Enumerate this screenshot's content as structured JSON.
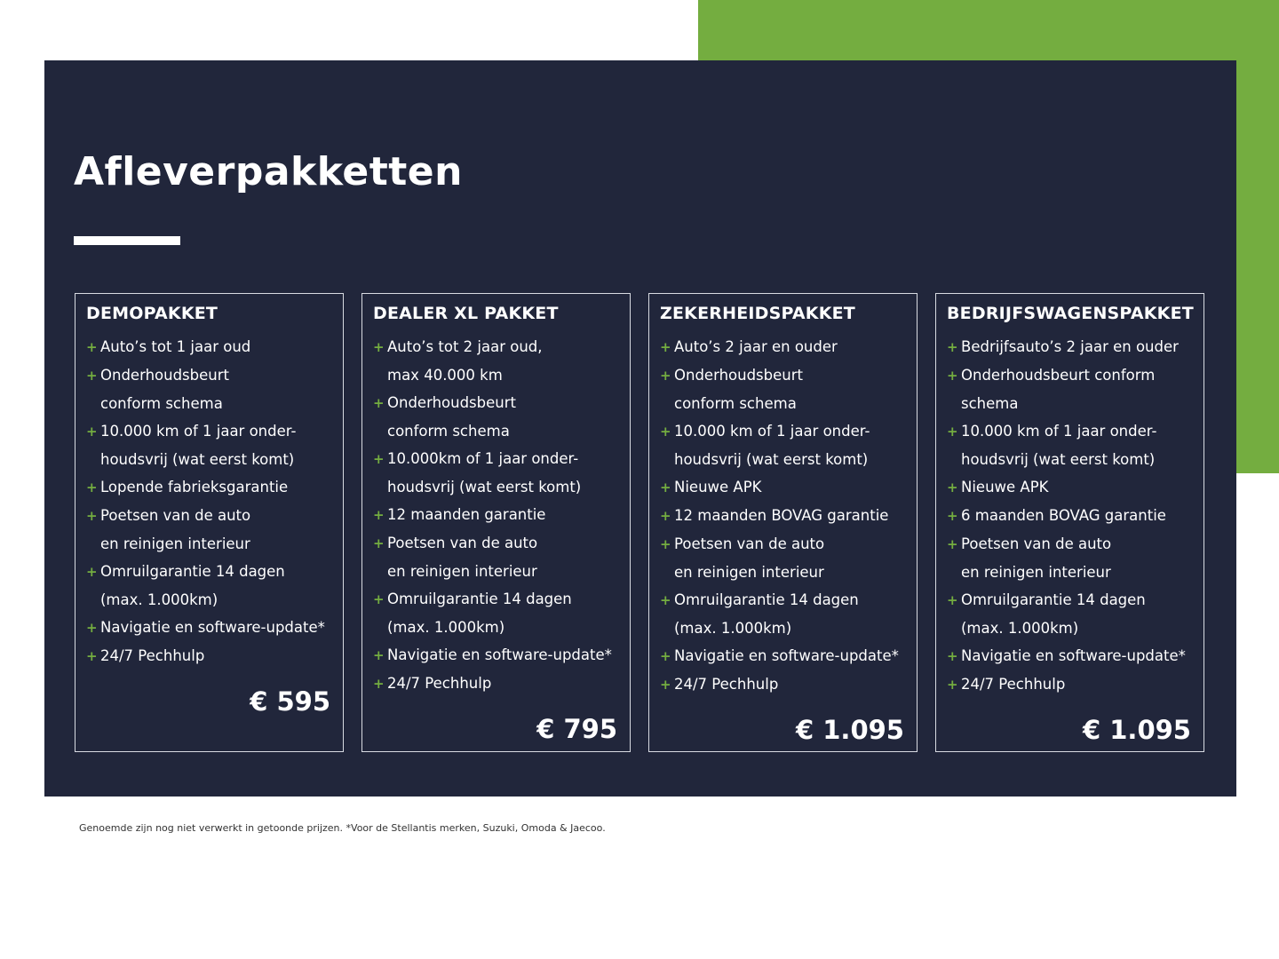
{
  "colors": {
    "accent": "#74ad40",
    "panel": "#21263b"
  },
  "title": "Afleverpakketten",
  "packages": [
    {
      "name": "DEMOPAKKET",
      "items": [
        [
          "Auto’s tot 1 jaar oud"
        ],
        [
          "Onderhoudsbeurt",
          "conform schema"
        ],
        [
          "10.000 km of 1 jaar onder-",
          "houdsvrij (wat eerst komt)"
        ],
        [
          "Lopende fabrieksgarantie"
        ],
        [
          "Poetsen van de auto",
          "en reinigen interieur"
        ],
        [
          "Omruilgarantie 14 dagen",
          "(max. 1.000km)"
        ],
        [
          "Navigatie en software-update*"
        ],
        [
          "24/7 Pechhulp"
        ]
      ],
      "price": "€ 595"
    },
    {
      "name": "DEALER XL PAKKET",
      "items": [
        [
          "Auto’s tot 2 jaar oud,",
          "max 40.000 km"
        ],
        [
          "Onderhoudsbeurt",
          "conform schema"
        ],
        [
          "10.000km of 1 jaar onder-",
          "houdsvrij (wat eerst komt)"
        ],
        [
          "12 maanden garantie"
        ],
        [
          "Poetsen van de auto",
          "en reinigen interieur"
        ],
        [
          "Omruilgarantie 14 dagen",
          "(max. 1.000km)"
        ],
        [
          "Navigatie en software-update*"
        ],
        [
          "24/7 Pechhulp"
        ]
      ],
      "price": "€ 795"
    },
    {
      "name": "ZEKERHEIDSPAKKET",
      "items": [
        [
          "Auto’s 2 jaar en ouder"
        ],
        [
          "Onderhoudsbeurt",
          "conform schema"
        ],
        [
          "10.000 km of 1 jaar onder-",
          "houdsvrij (wat eerst komt)"
        ],
        [
          "Nieuwe APK"
        ],
        [
          "12 maanden BOVAG garantie"
        ],
        [
          "Poetsen van de auto",
          "en reinigen interieur"
        ],
        [
          "Omruilgarantie 14 dagen",
          "(max. 1.000km)"
        ],
        [
          "Navigatie en software-update*"
        ],
        [
          "24/7 Pechhulp"
        ]
      ],
      "price": "€ 1.095"
    },
    {
      "name": "BEDRIJFSWAGENSPAKKET",
      "items": [
        [
          "Bedrijfsauto’s 2 jaar en ouder"
        ],
        [
          "Onderhoudsbeurt conform",
          "schema"
        ],
        [
          "10.000 km of 1 jaar onder-",
          "houdsvrij (wat eerst komt)"
        ],
        [
          "Nieuwe APK"
        ],
        [
          "6 maanden BOVAG garantie"
        ],
        [
          "Poetsen van de auto",
          "en reinigen interieur"
        ],
        [
          "Omruilgarantie 14 dagen",
          "(max. 1.000km)"
        ],
        [
          "Navigatie en software-update*"
        ],
        [
          "24/7 Pechhulp"
        ]
      ],
      "price": "€ 1.095"
    }
  ],
  "footnote": "Genoemde zijn nog niet verwerkt in getoonde prijzen. *Voor de Stellantis merken, Suzuki, Omoda & Jaecoo."
}
